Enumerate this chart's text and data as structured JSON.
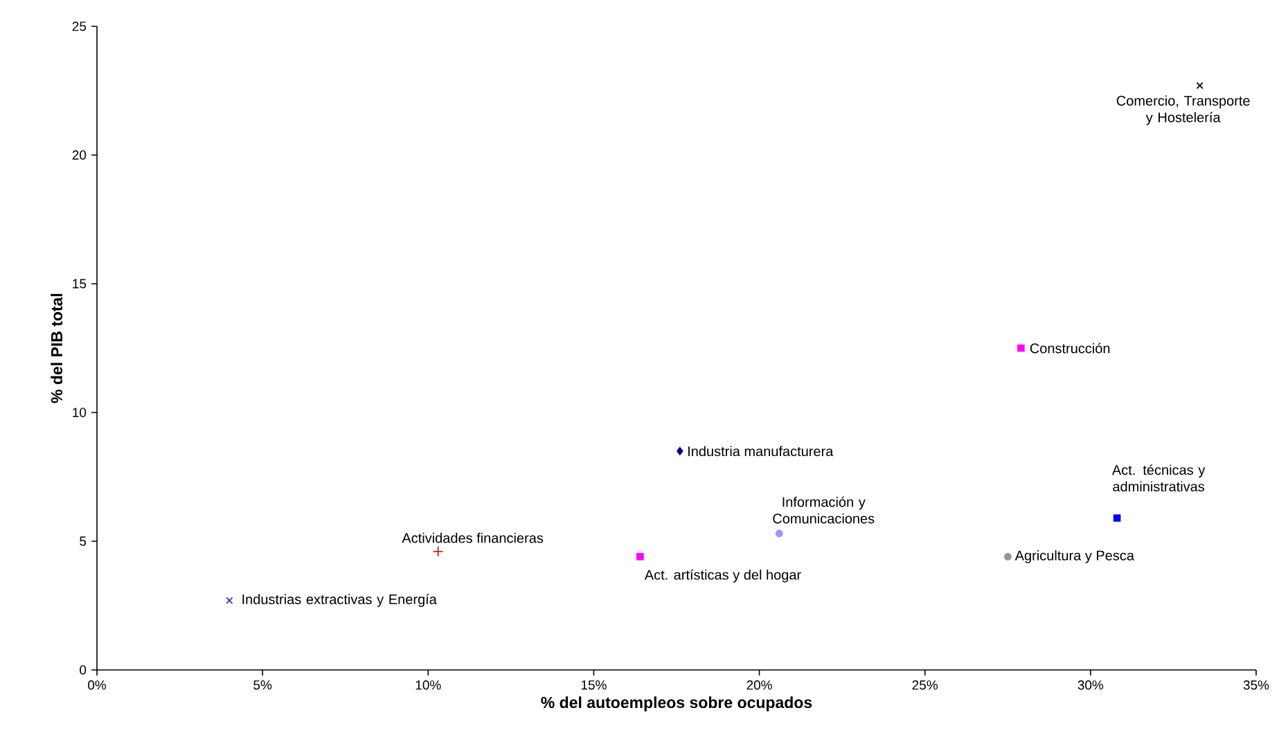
{
  "chart_data": {
    "type": "scatter",
    "xlabel": "% del autoempleos sobre ocupados",
    "ylabel": "% del PIB total",
    "xlim": [
      0,
      35
    ],
    "ylim": [
      0,
      25
    ],
    "xticks": [
      {
        "value": 0,
        "label": "0%"
      },
      {
        "value": 5,
        "label": "5%"
      },
      {
        "value": 10,
        "label": "10%"
      },
      {
        "value": 15,
        "label": "15%"
      },
      {
        "value": 20,
        "label": "20%"
      },
      {
        "value": 25,
        "label": "25%"
      },
      {
        "value": 30,
        "label": "30%"
      },
      {
        "value": 35,
        "label": "35%"
      }
    ],
    "yticks": [
      0,
      5,
      10,
      15,
      20,
      25
    ],
    "grid": false,
    "legend": false,
    "series": [
      {
        "name": "Industrias extractivas y Energía",
        "color": "#3333cc",
        "marker": "cross",
        "x": [
          4.0
        ],
        "values": [
          2.7
        ]
      },
      {
        "name": "Actividades financieras",
        "color": "#cc2222",
        "marker": "plus",
        "x": [
          10.3
        ],
        "values": [
          4.6
        ]
      },
      {
        "name": "Act. artísticas y del hogar",
        "color": "#ff00ff",
        "marker": "square",
        "x": [
          16.4
        ],
        "values": [
          4.4
        ]
      },
      {
        "name": "Industria manufacturera",
        "color": "#000080",
        "marker": "diamond",
        "x": [
          17.6
        ],
        "values": [
          8.5
        ]
      },
      {
        "name": "Información y Comunicaciones",
        "color": "#9999ff",
        "marker": "circle",
        "x": [
          20.6
        ],
        "values": [
          5.3
        ]
      },
      {
        "name": "Construcción",
        "color": "#ff00ff",
        "marker": "square",
        "x": [
          27.9
        ],
        "values": [
          12.5
        ]
      },
      {
        "name": "Act. técnicas y administrativas",
        "color": "#0000ff",
        "marker": "square",
        "x": [
          30.8
        ],
        "values": [
          5.9
        ]
      },
      {
        "name": "Agricultura y Pesca",
        "color": "#969696",
        "marker": "circle",
        "x": [
          27.5
        ],
        "values": [
          4.4
        ]
      },
      {
        "name": "Comercio, Transporte y Hostelería",
        "color": "#000000",
        "marker": "cross",
        "x": [
          33.3
        ],
        "values": [
          22.7
        ]
      }
    ]
  }
}
